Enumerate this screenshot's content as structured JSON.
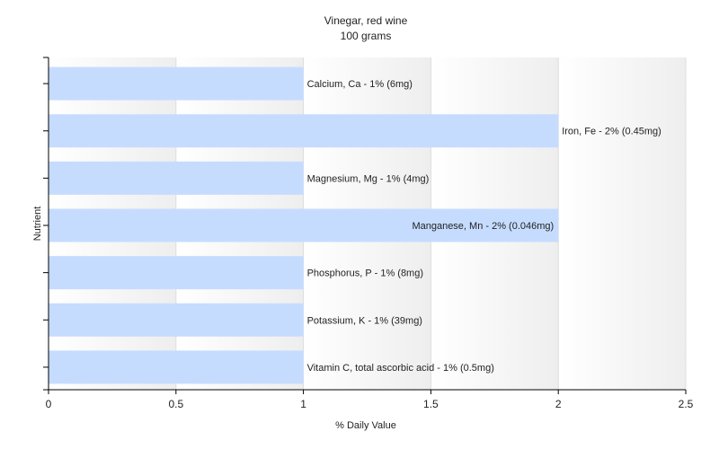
{
  "chart_data": {
    "type": "bar",
    "orientation": "horizontal",
    "title": "Vinegar, red wine",
    "subtitle": "100 grams",
    "xlabel": "% Daily Value",
    "ylabel": "Nutrient",
    "xlim": [
      0,
      2.5
    ],
    "xticks": [
      0,
      0.5,
      1,
      1.5,
      2,
      2.5
    ],
    "xtick_labels": [
      "0",
      "0.5",
      "1",
      "1.5",
      "2",
      "2.5"
    ],
    "grid": "vertical",
    "bar_color": "#c6dcff",
    "categories": [
      "Calcium, Ca - 1% (6mg)",
      "Iron, Fe - 2% (0.45mg)",
      "Magnesium, Mg - 1% (4mg)",
      "Manganese, Mn - 2% (0.046mg)",
      "Phosphorus, P - 1% (8mg)",
      "Potassium, K - 1% (39mg)",
      "Vitamin C, total ascorbic acid - 1% (0.5mg)"
    ],
    "values": [
      1,
      2,
      1,
      2,
      1,
      1,
      1
    ],
    "label_inside": [
      false,
      false,
      false,
      true,
      false,
      false,
      false
    ]
  }
}
